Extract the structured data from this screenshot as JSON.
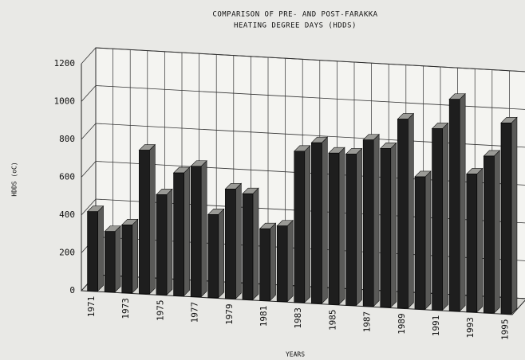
{
  "chart_data": {
    "type": "bar3d",
    "title": [
      "COMPARISON OF PRE- AND POST-FARAKKA",
      "HEATING DEGREE DAYS (HDDS)"
    ],
    "ylabel": "HDDS (oC)",
    "xlabel": "YEARS",
    "categories": [
      "1971",
      null,
      "1973",
      null,
      "1975",
      null,
      "1977",
      null,
      "1979",
      null,
      "1981",
      null,
      "1983",
      null,
      "1985",
      null,
      "1987",
      null,
      "1989",
      null,
      "1991",
      null,
      "1993",
      null,
      "1995"
    ],
    "values": [
      420,
      320,
      360,
      760,
      530,
      650,
      690,
      440,
      580,
      560,
      380,
      400,
      800,
      850,
      800,
      800,
      880,
      840,
      1000,
      700,
      960,
      1120,
      730,
      830,
      1010
    ],
    "color": "#1e1e1e",
    "ylim": [
      0,
      1200
    ],
    "yticks": [
      0,
      200,
      400,
      600,
      800,
      1000,
      1200
    ],
    "grid": true
  }
}
